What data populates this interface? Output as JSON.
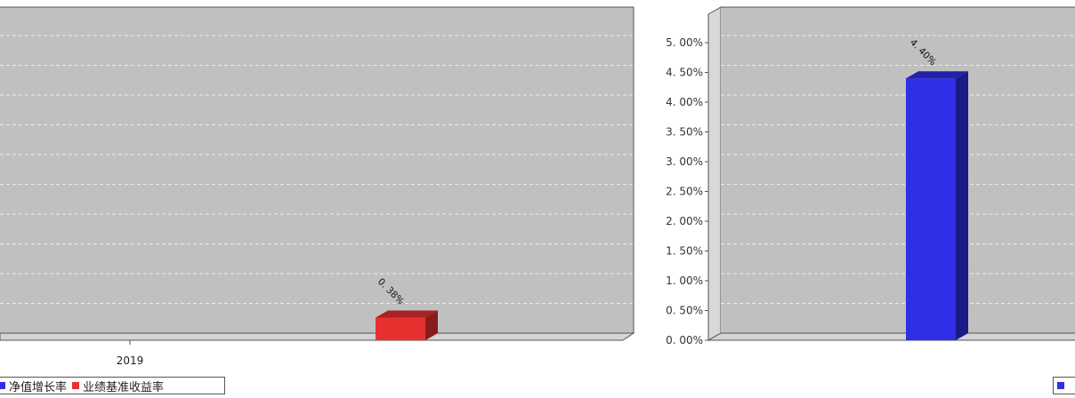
{
  "colors": {
    "plot_bg": "#c0c0c0",
    "wall_left": "#d8d8d8",
    "floor": "#d4d4d4",
    "axis_line": "#555555",
    "grid": "#ececec",
    "series_nav": "#2f2fe8",
    "series_bench": "#e83030"
  },
  "legend": {
    "nav_growth": "净值增长率",
    "benchmark_return": "业绩基准收益率"
  },
  "chart_data": [
    {
      "type": "bar",
      "categories": [
        "2019"
      ],
      "series": [
        {
          "name": "净值增长率",
          "values": [
            null
          ],
          "color": "#2f2fe8"
        },
        {
          "name": "业绩基准收益率",
          "values": [
            0.38
          ],
          "color": "#e83030"
        }
      ],
      "data_labels": [
        "0. 38%"
      ],
      "ylim": [
        0,
        5.5
      ],
      "grid": true,
      "legend_position": "bottom-left",
      "style": "3d"
    },
    {
      "type": "bar",
      "categories": [
        ""
      ],
      "series": [
        {
          "name": "净值增长率",
          "values": [
            4.4
          ],
          "color": "#2f2fe8"
        }
      ],
      "data_labels": [
        "4. 40%"
      ],
      "yticks": [
        "0. 00%",
        "0. 50%",
        "1. 00%",
        "1. 50%",
        "2. 00%",
        "2. 50%",
        "3. 00%",
        "3. 50%",
        "4. 00%",
        "4. 50%",
        "5. 00%"
      ],
      "ylim": [
        0,
        5.5
      ],
      "grid": true,
      "style": "3d"
    }
  ]
}
